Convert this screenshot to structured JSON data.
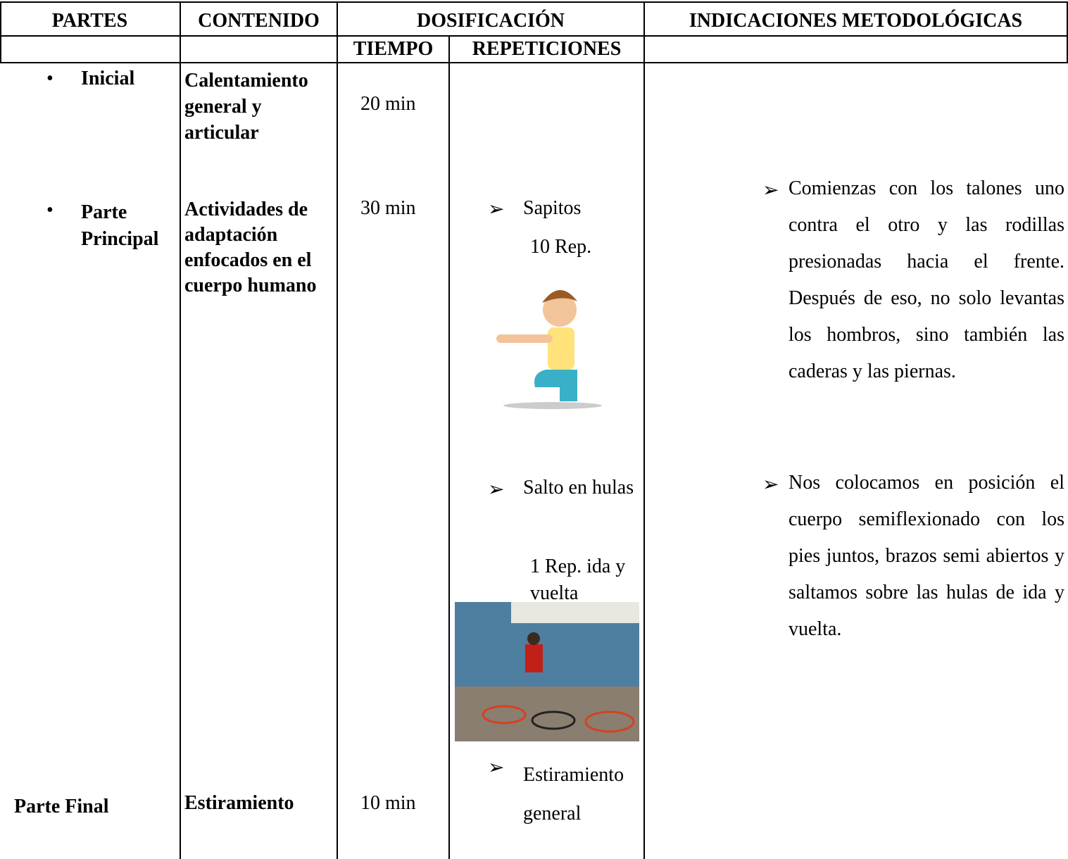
{
  "header": {
    "partes": "PARTES",
    "contenido": "CONTENIDO",
    "dosificacion": "DOSIFICACIÓN",
    "tiempo": "TIEMPO",
    "repeticiones": "REPETICIONES",
    "indicaciones": "INDICACIONES METODOLÓGICAS"
  },
  "rows": [
    {
      "parte": "Inicial",
      "contenido": "Calentamiento general y articular",
      "tiempo": "20 min"
    },
    {
      "parte": "Parte Principal",
      "contenido": "Actividades de adaptación enfocados en el cuerpo humano",
      "tiempo": "30 min",
      "ejercicios": [
        {
          "nombre": "Sapitos",
          "reps": "10 Rep."
        },
        {
          "nombre": "Salto en hulas",
          "reps": "1 Rep. ida y vuelta"
        }
      ]
    },
    {
      "parte": "Parte Final",
      "contenido": "Estiramiento",
      "tiempo": "10 min",
      "ejercicio": "Estiramiento general"
    }
  ],
  "indicaciones": [
    "Comienzas con los talones uno contra el otro y las rodillas presionadas hacia el frente. Después de eso, no solo levantas los hombros, sino también las caderas y las piernas.",
    "Nos colocamos en posición el cuerpo semiflexionado con los pies juntos, brazos semi abiertos y saltamos sobre las hulas de ida y vuelta."
  ]
}
